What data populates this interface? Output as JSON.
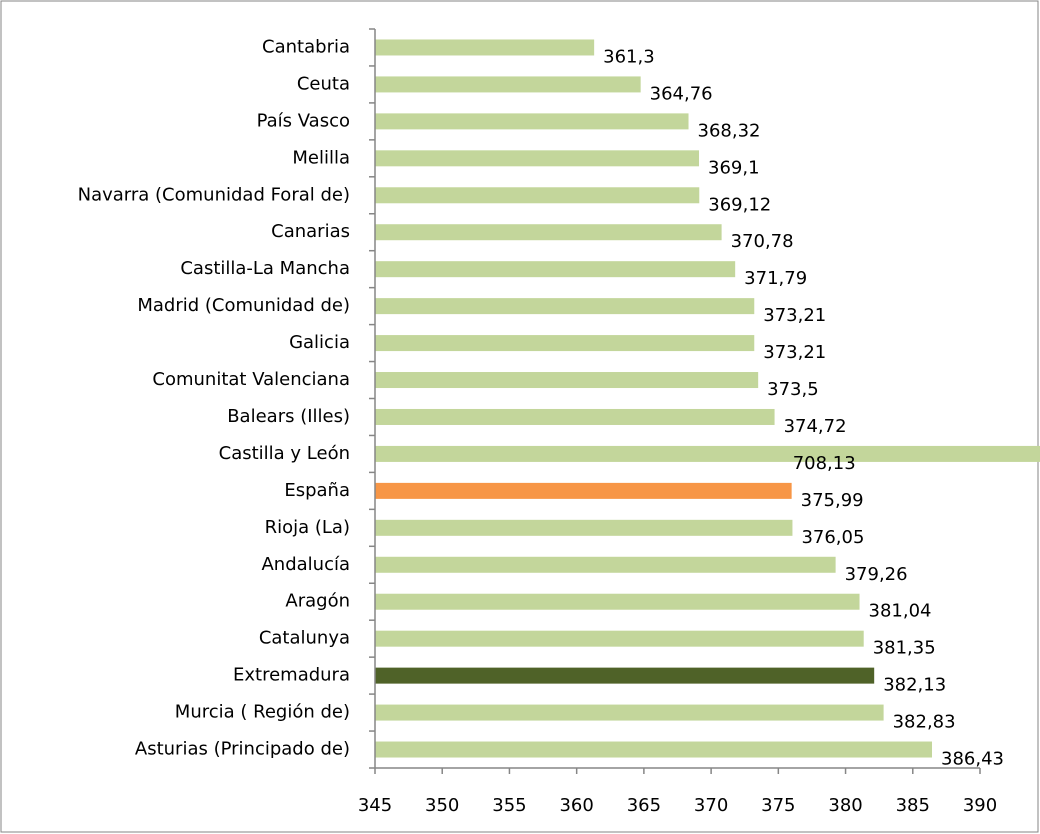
{
  "chart_data": {
    "type": "hbar",
    "categories": [
      "Cantabria",
      "Ceuta",
      "País Vasco",
      "Melilla",
      "Navarra (Comunidad Foral de)",
      "Canarias",
      "Castilla-La Mancha",
      "Madrid (Comunidad de)",
      "Galicia",
      "Comunitat Valenciana",
      "Balears (Illes)",
      "Castilla y León",
      "España",
      "Rioja (La)",
      "Andalucía",
      "Aragón",
      "Catalunya",
      "Extremadura",
      "Murcia ( Región de)",
      "Asturias (Principado de)"
    ],
    "values": [
      361.3,
      364.76,
      368.32,
      369.1,
      369.12,
      370.78,
      371.79,
      373.21,
      373.21,
      373.5,
      374.72,
      708.13,
      375.99,
      376.05,
      379.26,
      381.04,
      381.35,
      382.13,
      382.83,
      386.43
    ],
    "value_labels": [
      "361,3",
      "364,76",
      "368,32",
      "369,1",
      "369,12",
      "370,78",
      "371,79",
      "373,21",
      "373,21",
      "373,5",
      "374,72",
      "708,13",
      "375,99",
      "376,05",
      "379,26",
      "381,04",
      "381,35",
      "382,13",
      "382,83",
      "386,43"
    ],
    "colors": [
      "#c3d69b",
      "#c3d69b",
      "#c3d69b",
      "#c3d69b",
      "#c3d69b",
      "#c3d69b",
      "#c3d69b",
      "#c3d69b",
      "#c3d69b",
      "#c3d69b",
      "#c3d69b",
      "#c3d69b",
      "#f79646",
      "#c3d69b",
      "#c3d69b",
      "#c3d69b",
      "#c3d69b",
      "#4f6228",
      "#c3d69b",
      "#c3d69b"
    ],
    "xlim": [
      345,
      390
    ],
    "xticks": [
      345,
      350,
      355,
      360,
      365,
      370,
      375,
      380,
      385,
      390
    ],
    "grid": false
  }
}
